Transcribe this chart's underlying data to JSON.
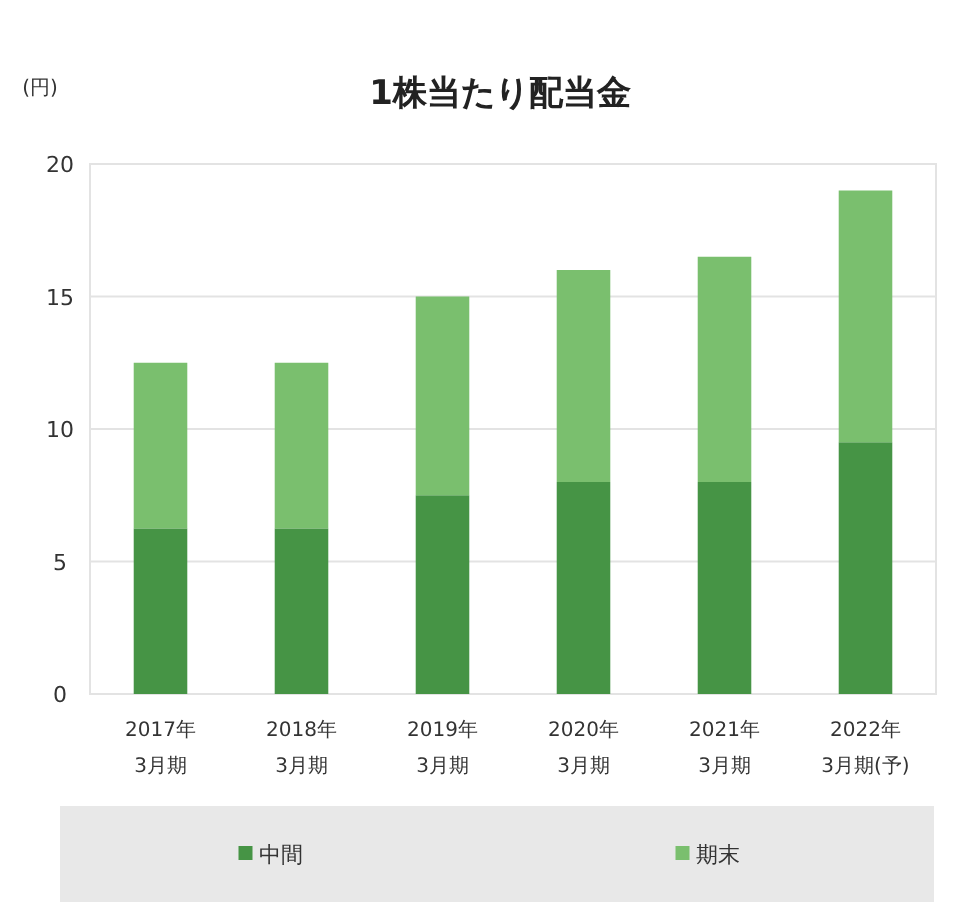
{
  "chart_data": {
    "type": "bar",
    "title": "1株当たり配当金",
    "ylabel": "(円)",
    "stacked": true,
    "categories": [
      "2017年\n3月期",
      "2018年\n3月期",
      "2019年\n3月期",
      "2020年\n3月期",
      "2021年\n3月期",
      "2022年\n3月期(予)"
    ],
    "series": [
      {
        "name": "中間",
        "color": "#469445",
        "values": [
          6.25,
          6.25,
          7.5,
          8,
          8,
          9.5
        ]
      },
      {
        "name": "期末",
        "color": "#7abf6e",
        "values": [
          6.25,
          6.25,
          7.5,
          8,
          8.5,
          9.5
        ]
      }
    ],
    "ylim": [
      0,
      20
    ],
    "yticks": [
      0,
      5,
      10,
      15,
      20
    ],
    "grid": "y",
    "legend": "bottom"
  }
}
